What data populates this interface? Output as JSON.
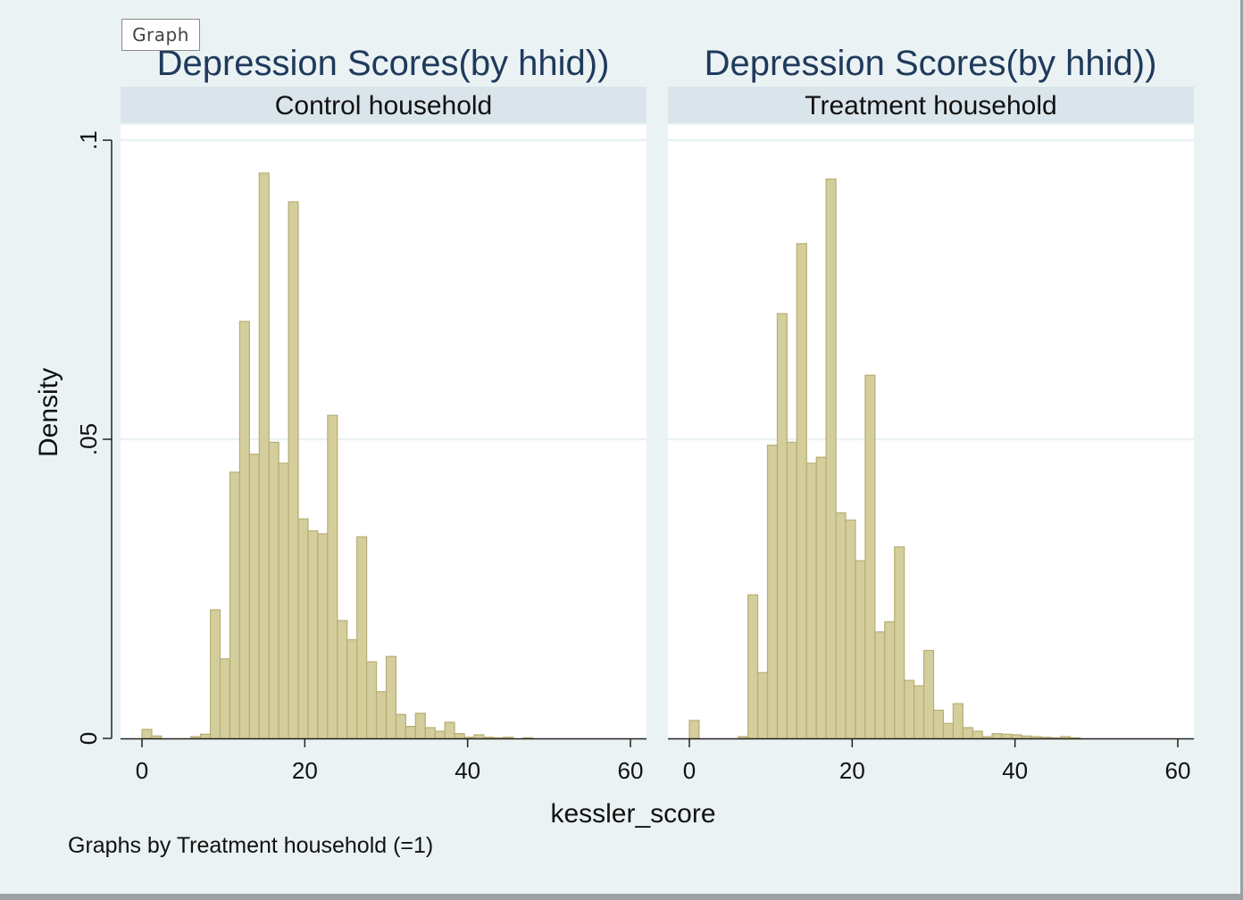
{
  "window": {
    "tag_label": "Graph"
  },
  "colors": {
    "bar_fill": "#d4cd9c",
    "bar_stroke": "#b7ae74",
    "background": "#eaf2f3",
    "strip": "#d9e5ea",
    "title": "#1f3a5c"
  },
  "chart_data": {
    "type": "bar",
    "xlabel": "kessler_score",
    "ylabel": "Density",
    "note": "Graphs by Treatment household (=1)",
    "xlim": [
      0,
      60
    ],
    "ylim": [
      0,
      0.1
    ],
    "x_ticks": [
      "0",
      "20",
      "40",
      "60"
    ],
    "y_ticks": [
      "0",
      ".05",
      ".1"
    ],
    "grid": true,
    "bin_width": 1.2,
    "panels": [
      {
        "title": "Depression Scores(by hhid))",
        "strip": "Control household",
        "bins": [
          [
            0.6,
            0.0015
          ],
          [
            1.8,
            0.0004
          ],
          [
            3.0,
            0
          ],
          [
            4.2,
            0
          ],
          [
            5.4,
            0
          ],
          [
            6.6,
            0.0003
          ],
          [
            7.8,
            0.0007
          ],
          [
            9.0,
            0.0215
          ],
          [
            10.2,
            0.0133
          ],
          [
            11.4,
            0.0445
          ],
          [
            12.6,
            0.0697
          ],
          [
            13.8,
            0.0475
          ],
          [
            15.0,
            0.0945
          ],
          [
            16.2,
            0.0495
          ],
          [
            17.4,
            0.046
          ],
          [
            18.6,
            0.0897
          ],
          [
            19.8,
            0.0367
          ],
          [
            21.0,
            0.0347
          ],
          [
            22.2,
            0.0342
          ],
          [
            23.4,
            0.054
          ],
          [
            24.6,
            0.0197
          ],
          [
            25.8,
            0.0165
          ],
          [
            27.0,
            0.0337
          ],
          [
            28.2,
            0.0128
          ],
          [
            29.4,
            0.0078
          ],
          [
            30.6,
            0.0137
          ],
          [
            31.8,
            0.004
          ],
          [
            33.0,
            0.002
          ],
          [
            34.2,
            0.0042
          ],
          [
            35.4,
            0.0018
          ],
          [
            36.6,
            0.0012
          ],
          [
            37.8,
            0.0027
          ],
          [
            39.0,
            0.0008
          ],
          [
            40.2,
            0.0002
          ],
          [
            41.4,
            0.0006
          ],
          [
            42.6,
            0.0002
          ],
          [
            43.8,
            0.0001
          ],
          [
            45.0,
            0.0002
          ],
          [
            46.2,
            0
          ],
          [
            47.4,
            0.0001
          ]
        ]
      },
      {
        "title": "Depression Scores(by hhid))",
        "strip": "Treatment household",
        "bins": [
          [
            0.6,
            0.003
          ],
          [
            1.8,
            0
          ],
          [
            3.0,
            0
          ],
          [
            4.2,
            0
          ],
          [
            5.4,
            0
          ],
          [
            6.6,
            0.0003
          ],
          [
            7.8,
            0.024
          ],
          [
            9.0,
            0.011
          ],
          [
            10.2,
            0.049
          ],
          [
            11.4,
            0.071
          ],
          [
            12.6,
            0.0495
          ],
          [
            13.8,
            0.0827
          ],
          [
            15.0,
            0.046
          ],
          [
            16.2,
            0.047
          ],
          [
            17.4,
            0.0935
          ],
          [
            18.6,
            0.0377
          ],
          [
            19.8,
            0.0365
          ],
          [
            21.0,
            0.0297
          ],
          [
            22.2,
            0.0607
          ],
          [
            23.4,
            0.0178
          ],
          [
            24.6,
            0.0195
          ],
          [
            25.8,
            0.032
          ],
          [
            27.0,
            0.0097
          ],
          [
            28.2,
            0.0088
          ],
          [
            29.4,
            0.0147
          ],
          [
            30.6,
            0.0047
          ],
          [
            31.8,
            0.0025
          ],
          [
            33.0,
            0.0058
          ],
          [
            34.2,
            0.0018
          ],
          [
            35.4,
            0.0012
          ],
          [
            36.6,
            0.0003
          ],
          [
            37.8,
            0.0008
          ],
          [
            39.0,
            0.0007
          ],
          [
            40.2,
            0.0006
          ],
          [
            41.4,
            0.0004
          ],
          [
            42.6,
            0.0003
          ],
          [
            43.8,
            0.0002
          ],
          [
            45.0,
            0.0001
          ],
          [
            46.2,
            0.0003
          ],
          [
            47.4,
            0.0001
          ]
        ]
      }
    ]
  }
}
